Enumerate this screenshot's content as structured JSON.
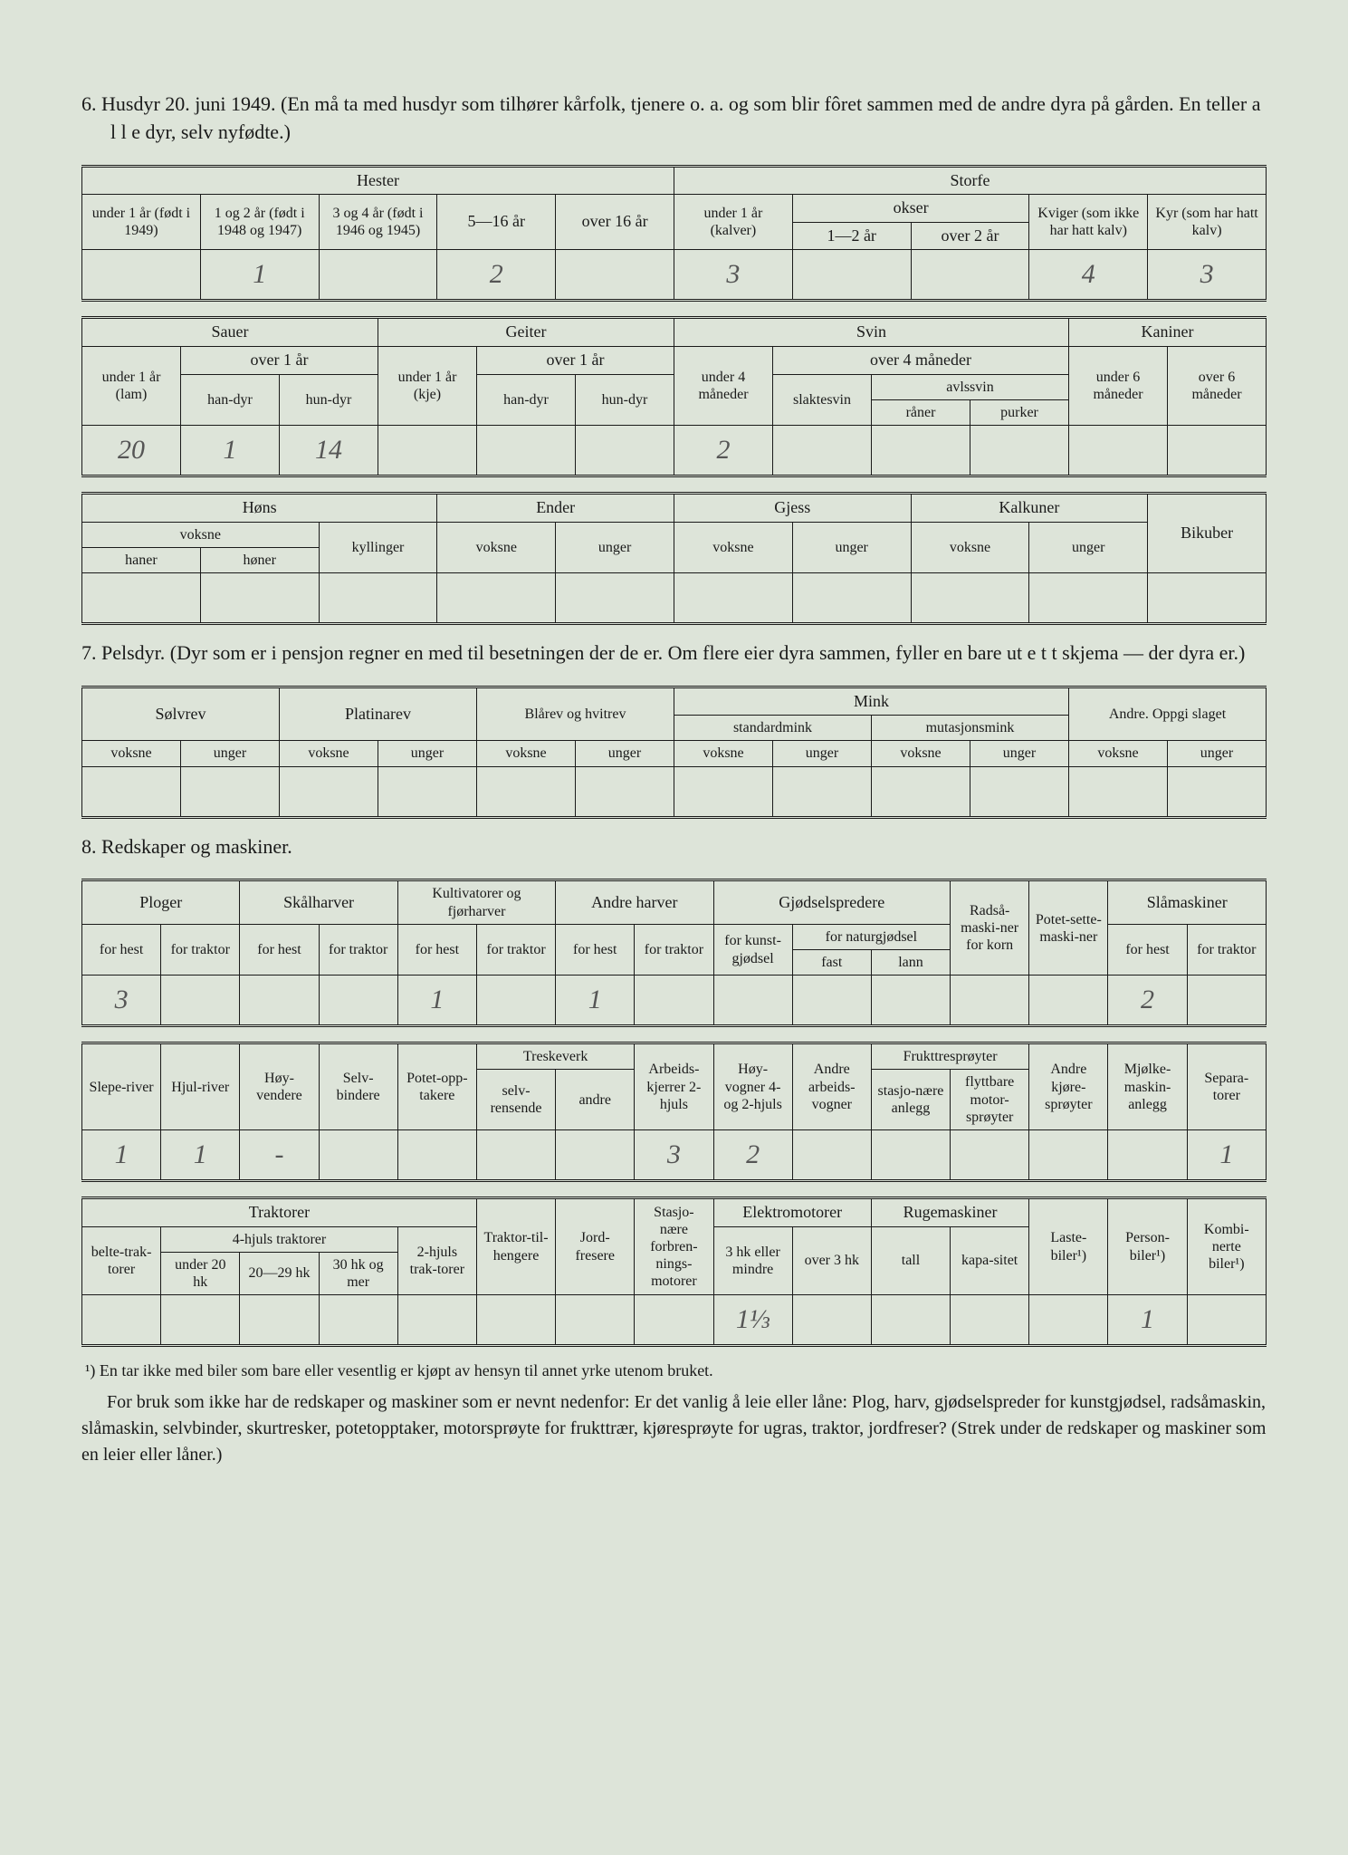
{
  "colors": {
    "paper_bg": "#dde4d9",
    "ink": "#1a1a1a",
    "pencil": "#555555"
  },
  "typography": {
    "body_family": "Georgia, 'Times New Roman', serif",
    "body_size_pt": 15,
    "header_size_pt": 17,
    "data_cell_size_pt": 22,
    "data_cell_style": "italic handwritten"
  },
  "section6": {
    "num": "6.",
    "text": "Husdyr 20. juni 1949.  (En må ta med husdyr som tilhører kårfolk, tjenere o. a. og som blir fôret sammen med de andre dyra på gården.  En teller a l l e dyr, selv nyfødte.)",
    "tableA": {
      "group_left": "Hester",
      "group_right": "Storfe",
      "cols": {
        "c1": "under 1 år (født i 1949)",
        "c2": "1 og 2 år (født i 1948 og 1947)",
        "c3": "3 og 4 år (født i 1946 og 1945)",
        "c4": "5—16 år",
        "c5": "over 16 år",
        "c6": "under 1 år (kalver)",
        "okser": "okser",
        "c7": "1—2 år",
        "c8": "over 2 år",
        "c9": "Kviger (som ikke har hatt kalv)",
        "c10": "Kyr (som har hatt kalv)"
      },
      "values": {
        "c1": "",
        "c2": "1",
        "c3": "",
        "c4": "2",
        "c5": "",
        "c6": "3",
        "c7": "",
        "c8": "",
        "c9": "4",
        "c10": "3"
      }
    },
    "tableB": {
      "groups": {
        "g1": "Sauer",
        "g2": "Geiter",
        "g3": "Svin",
        "g4": "Kaniner"
      },
      "sub": {
        "sauer_u1": "under 1 år (lam)",
        "sauer_o1": "over 1 år",
        "sauer_han": "han-dyr",
        "sauer_hun": "hun-dyr",
        "geit_u1": "under 1 år (kje)",
        "geit_o1": "over 1 år",
        "geit_han": "han-dyr",
        "geit_hun": "hun-dyr",
        "svin_u4": "under 4 måneder",
        "svin_o4": "over 4 måneder",
        "svin_slakt": "slaktesvin",
        "svin_avl": "avlssvin",
        "svin_raner": "råner",
        "svin_purker": "purker",
        "kan_u6": "under 6 måneder",
        "kan_o6": "over 6 måneder"
      },
      "values": {
        "sauer_u1": "20",
        "sauer_han": "1",
        "sauer_hun": "14",
        "geit_u1": "",
        "geit_han": "",
        "geit_hun": "",
        "svin_u4": "2",
        "svin_slakt": "",
        "svin_raner": "",
        "svin_purker": "",
        "kan_u6": "",
        "kan_o6": ""
      }
    },
    "tableC": {
      "groups": {
        "g1": "Høns",
        "g2": "Ender",
        "g3": "Gjess",
        "g4": "Kalkuner",
        "g5": "Bikuber"
      },
      "sub": {
        "hons_voksne": "voksne",
        "hons_haner": "haner",
        "hons_honer": "høner",
        "hons_kyll": "kyllinger",
        "ender_v": "voksne",
        "ender_u": "unger",
        "gjess_v": "voksne",
        "gjess_u": "unger",
        "kalk_v": "voksne",
        "kalk_u": "unger"
      },
      "values": {}
    }
  },
  "section7": {
    "num": "7.",
    "text": "Pelsdyr.  (Dyr som er i pensjon regner en med til besetningen der de er.  Om flere eier dyra sammen, fyller en bare ut e t t skjema — der dyra er.)",
    "groups": {
      "g1": "Sølvrev",
      "g2": "Platinarev",
      "g3": "Blårev og hvitrev",
      "g4": "Mink",
      "g4a": "standardmink",
      "g4b": "mutasjonsmink",
      "g5": "Andre. Oppgi slaget"
    },
    "sub": {
      "v": "voksne",
      "u": "unger"
    },
    "values": {}
  },
  "section8": {
    "num": "8.",
    "text": "Redskaper og maskiner.",
    "tableA": {
      "groups": {
        "g1": "Ploger",
        "g2": "Skålharver",
        "g3": "Kultivatorer og fjørharver",
        "g4": "Andre harver",
        "g5": "Gjødselspredere",
        "g6": "Radså-maski-ner for korn",
        "g7": "Potet-sette-maski-ner",
        "g8": "Slåmaskiner"
      },
      "sub_hest": "for hest",
      "sub_traktor": "for traktor",
      "g5_kunst": "for kunst-gjødsel",
      "g5_nat": "for naturgjødsel",
      "g5_fast": "fast",
      "g5_lann": "lann",
      "values": {
        "plog_hest": "3",
        "kult_hest": "1",
        "andre_hest": "1",
        "slam_hest": "2"
      }
    },
    "tableB": {
      "cols": {
        "c1": "Slepe-river",
        "c2": "Hjul-river",
        "c3": "Høy-vendere",
        "c4": "Selv-bindere",
        "c5": "Potet-opp-takere",
        "c6": "Treskeverk",
        "c6a": "selv-rensende",
        "c6b": "andre",
        "c7": "Arbeids-kjerrer 2-hjuls",
        "c8": "Høy-vogner 4- og 2-hjuls",
        "c9": "Andre arbeids-vogner",
        "c10": "Frukttresprøyter",
        "c10a": "stasjo-nære anlegg",
        "c10b": "flyttbare motor-sprøyter",
        "c11": "Andre kjøre-sprøyter",
        "c12": "Mjølke-maskin-anlegg",
        "c13": "Separa-torer"
      },
      "values": {
        "c1": "1",
        "c2": "1",
        "c3": "-",
        "c7": "3",
        "c8": "2",
        "c13": "1"
      }
    },
    "tableC": {
      "groups": {
        "g1": "Traktorer",
        "g1a": "4-hjuls traktorer"
      },
      "cols": {
        "belte": "belte-trak-torer",
        "u20": "under 20 hk",
        "m20_29": "20—29 hk",
        "o30": "30 hk og mer",
        "to_hjul": "2-hjuls trak-torer",
        "tilh": "Traktor-til-hengere",
        "jord": "Jord-fresere",
        "stasj": "Stasjo-nære forbren-nings-motorer",
        "elektro": "Elektromotorer",
        "e3": "3 hk eller mindre",
        "eo3": "over 3 hk",
        "ruge": "Rugemaskiner",
        "tall": "tall",
        "kap": "kapa-sitet",
        "laste": "Laste-biler¹)",
        "person": "Person-biler¹)",
        "kombi": "Kombi-nerte biler¹)"
      },
      "values": {
        "e3": "1⅓",
        "person": "1"
      }
    }
  },
  "footnote": "¹) En tar ikke med biler som bare eller vesentlig er kjøpt av hensyn til annet yrke utenom bruket.",
  "bodytext": "For bruk som ikke har de redskaper og maskiner som er nevnt nedenfor: Er det vanlig å leie eller låne: Plog, harv, gjødselspreder for kunstgjødsel, radsåmaskin, slåmaskin, selvbinder, skurtresker, potetopptaker, motorsprøyte for frukttrær, kjøresprøyte for ugras, traktor, jordfreser? (Strek under de redskaper og maskiner som en leier eller låner.)"
}
